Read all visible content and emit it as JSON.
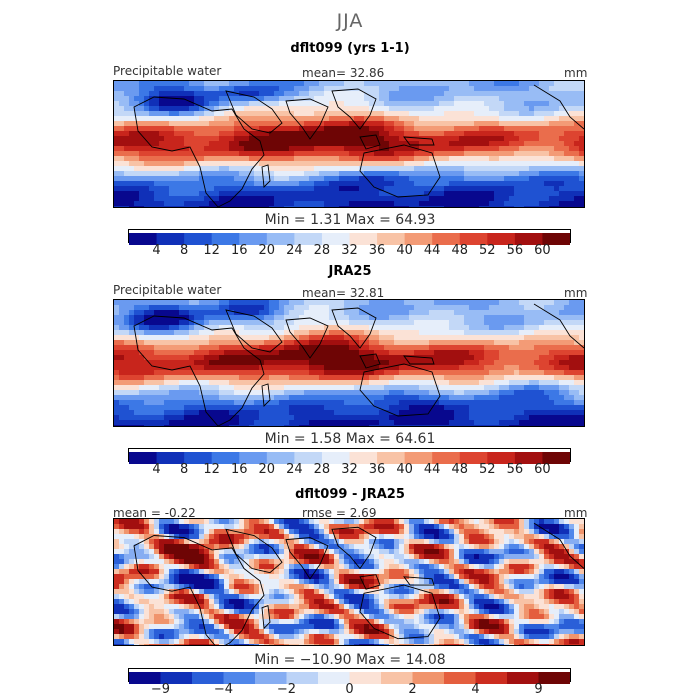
{
  "season": "JJA",
  "units": "mm",
  "panels": [
    {
      "title": "dflt099 (yrs 1-1)",
      "variable": "Precipitable water",
      "stat_text": "mean=  32.86",
      "min_max_text": "Min =    1.31 Max =  64.93",
      "colorbar_ticks": [
        "4",
        "8",
        "12",
        "16",
        "20",
        "24",
        "28",
        "32",
        "36",
        "40",
        "44",
        "48",
        "52",
        "56",
        "60"
      ]
    },
    {
      "title": "JRA25",
      "variable": "Precipitable water",
      "stat_text": "mean=  32.81",
      "min_max_text": "Min =    1.58 Max =  64.61",
      "colorbar_ticks": [
        "4",
        "8",
        "12",
        "16",
        "20",
        "24",
        "28",
        "32",
        "36",
        "40",
        "44",
        "48",
        "52",
        "56",
        "60"
      ]
    },
    {
      "title": "dflt099 - JRA25",
      "mean_text": "mean =  -0.22",
      "rmse_text": "rmse =    2.69",
      "min_max_text": "Min = −10.90 Max =  14.08",
      "colorbar_ticks": [
        "−9",
        "−4",
        "−2",
        "0",
        "2",
        "4",
        "9"
      ]
    }
  ],
  "chart_data": [
    {
      "type": "heatmap",
      "title": "dflt099 (yrs 1-1)",
      "subtitle": "JJA",
      "variable": "Precipitable water",
      "units": "mm",
      "mean": 32.86,
      "min": 1.31,
      "max": 64.93,
      "levels": [
        4,
        8,
        12,
        16,
        20,
        24,
        28,
        32,
        36,
        40,
        44,
        48,
        52,
        56,
        60
      ],
      "colors": [
        "#08088e",
        "#1030b8",
        "#1f52d2",
        "#3c78e6",
        "#6a9af0",
        "#98bcf5",
        "#c3d8f7",
        "#e6eefa",
        "#fbe2d6",
        "#f8c3a6",
        "#f39b76",
        "#ea6d4c",
        "#dd4430",
        "#c8251c",
        "#a20f0f",
        "#6e0505"
      ]
    },
    {
      "type": "heatmap",
      "title": "JRA25",
      "variable": "Precipitable water",
      "units": "mm",
      "mean": 32.81,
      "min": 1.58,
      "max": 64.61,
      "levels": [
        4,
        8,
        12,
        16,
        20,
        24,
        28,
        32,
        36,
        40,
        44,
        48,
        52,
        56,
        60
      ],
      "colors": [
        "#08088e",
        "#1030b8",
        "#1f52d2",
        "#3c78e6",
        "#6a9af0",
        "#98bcf5",
        "#c3d8f7",
        "#e6eefa",
        "#fbe2d6",
        "#f8c3a6",
        "#f39b76",
        "#ea6d4c",
        "#dd4430",
        "#c8251c",
        "#a20f0f",
        "#6e0505"
      ]
    },
    {
      "type": "heatmap",
      "title": "dflt099 - JRA25",
      "units": "mm",
      "mean": -0.22,
      "rmse": 2.69,
      "min": -10.9,
      "max": 14.08,
      "levels": [
        -9,
        -6,
        -4,
        -3,
        -2,
        -1,
        0,
        1,
        2,
        3,
        4,
        6,
        9
      ],
      "tick_labels": [
        -9,
        -4,
        -2,
        0,
        2,
        4,
        9
      ],
      "colors": [
        "#08088e",
        "#1030b8",
        "#2a5fd8",
        "#4f86ea",
        "#86adf2",
        "#bcd3f7",
        "#e6eefa",
        "#fbe2d6",
        "#f8c3a6",
        "#f0946c",
        "#e45e3e",
        "#cc2d20",
        "#a20f0f",
        "#6e0505"
      ]
    }
  ]
}
